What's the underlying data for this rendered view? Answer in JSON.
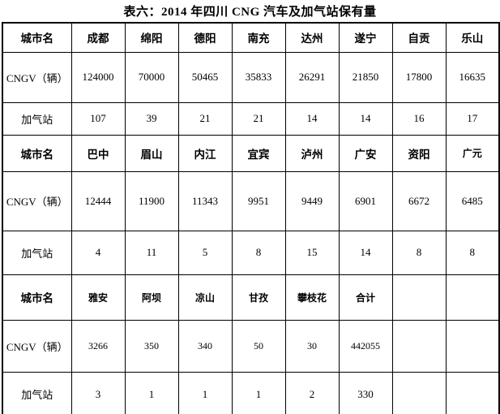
{
  "title": "表六：2014 年四川 CNG 汽车及加气站保有量",
  "table": {
    "rows": [
      {
        "kind": "city-header",
        "cells": [
          "城市名",
          "成都",
          "绵阳",
          "德阳",
          "南充",
          "达州",
          "遂宁",
          "自贡",
          "乐山"
        ]
      },
      {
        "kind": "data",
        "cells": [
          "CNGV（辆）",
          "124000",
          "70000",
          "50465",
          "35833",
          "26291",
          "21850",
          "17800",
          "16635"
        ]
      },
      {
        "kind": "data",
        "cells": [
          "加气站",
          "107",
          "39",
          "21",
          "21",
          "14",
          "14",
          "16",
          "17"
        ]
      },
      {
        "kind": "city-header",
        "cells": [
          "城市名",
          "巴中",
          "眉山",
          "内江",
          "宜宾",
          "泸州",
          "广安",
          "资阳",
          "广元"
        ]
      },
      {
        "kind": "data",
        "cells": [
          "CNGV（辆）",
          "12444",
          "11900",
          "11343",
          "9951",
          "9449",
          "6901",
          "6672",
          "6485"
        ]
      },
      {
        "kind": "data",
        "cells": [
          "加气站",
          "4",
          "11",
          "5",
          "8",
          "15",
          "14",
          "8",
          "8"
        ]
      },
      {
        "kind": "city-header",
        "cells": [
          "城市名",
          "雅安",
          "阿坝",
          "凉山",
          "甘孜",
          "攀枝花",
          "合计",
          "",
          ""
        ]
      },
      {
        "kind": "data",
        "cells": [
          "CNGV（辆）",
          "3266",
          "350",
          "340",
          "50",
          "30",
          "442055",
          "",
          ""
        ]
      },
      {
        "kind": "data",
        "cells": [
          "加气站",
          "3",
          "1",
          "1",
          "1",
          "2",
          "330",
          "",
          ""
        ]
      }
    ]
  }
}
